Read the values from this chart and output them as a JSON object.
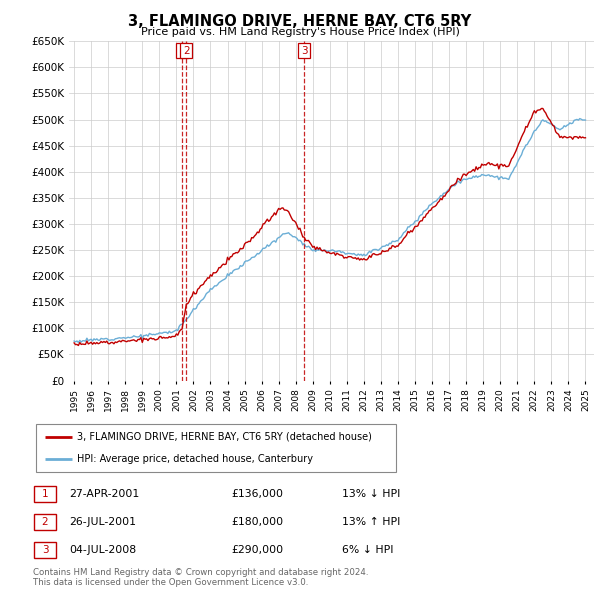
{
  "title": "3, FLAMINGO DRIVE, HERNE BAY, CT6 5RY",
  "subtitle": "Price paid vs. HM Land Registry's House Price Index (HPI)",
  "ylim": [
    0,
    650000
  ],
  "yticks": [
    0,
    50000,
    100000,
    150000,
    200000,
    250000,
    300000,
    350000,
    400000,
    450000,
    500000,
    550000,
    600000,
    650000
  ],
  "ytick_labels": [
    "£0",
    "£50K",
    "£100K",
    "£150K",
    "£200K",
    "£250K",
    "£300K",
    "£350K",
    "£400K",
    "£450K",
    "£500K",
    "£550K",
    "£600K",
    "£650K"
  ],
  "sales": [
    {
      "label": "1",
      "date_str": "27-APR-2001",
      "date_num": 2001.32,
      "price": 136000,
      "pct": "13%",
      "dir": "↓"
    },
    {
      "label": "2",
      "date_str": "26-JUL-2001",
      "date_num": 2001.57,
      "price": 180000,
      "pct": "13%",
      "dir": "↑"
    },
    {
      "label": "3",
      "date_str": "04-JUL-2008",
      "date_num": 2008.51,
      "price": 290000,
      "pct": "6%",
      "dir": "↓"
    }
  ],
  "hpi_color": "#6baed6",
  "sale_color": "#c00000",
  "grid_color": "#cccccc",
  "background_color": "#ffffff",
  "legend_label_red": "3, FLAMINGO DRIVE, HERNE BAY, CT6 5RY (detached house)",
  "legend_label_blue": "HPI: Average price, detached house, Canterbury",
  "footer": "Contains HM Land Registry data © Crown copyright and database right 2024.\nThis data is licensed under the Open Government Licence v3.0.",
  "xmin": 1994.7,
  "xmax": 2025.5,
  "hpi_anchors_t": [
    1995.0,
    1997.0,
    1999.0,
    2001.0,
    2003.0,
    2005.0,
    2007.5,
    2009.0,
    2010.0,
    2012.0,
    2014.0,
    2016.0,
    2017.5,
    2019.0,
    2020.5,
    2021.5,
    2022.5,
    2023.5,
    2024.5
  ],
  "hpi_anchors_v": [
    75000,
    80000,
    85000,
    95000,
    175000,
    225000,
    285000,
    250000,
    250000,
    240000,
    270000,
    340000,
    380000,
    395000,
    385000,
    450000,
    500000,
    480000,
    500000
  ],
  "red_scale_t": [
    1995.0,
    1998.0,
    2000.5,
    2001.32,
    2001.57,
    2003.0,
    2005.0,
    2007.0,
    2008.51,
    2010.0,
    2013.0,
    2016.0,
    2019.0,
    2022.0,
    2023.5,
    2024.5,
    2025.0
  ],
  "red_scale_v": [
    0.93,
    0.92,
    0.9,
    0.9,
    1.25,
    1.15,
    1.15,
    1.2,
    1.05,
    0.98,
    0.96,
    0.97,
    1.05,
    1.08,
    0.97,
    0.93,
    0.93
  ]
}
